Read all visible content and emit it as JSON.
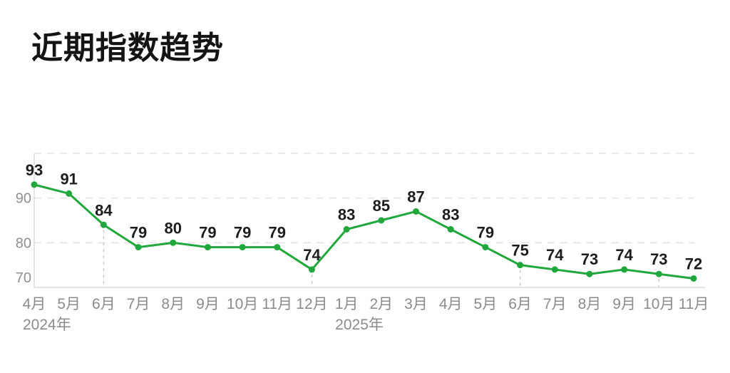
{
  "title": "近期指数趋势",
  "chart_data": {
    "type": "line",
    "title": "近期指数趋势",
    "x": [
      "4月",
      "5月",
      "6月",
      "7月",
      "8月",
      "9月",
      "10月",
      "11月",
      "12月",
      "1月",
      "2月",
      "3月",
      "4月",
      "5月",
      "6月",
      "7月",
      "8月",
      "9月",
      "10月",
      "11月"
    ],
    "values": [
      93,
      91,
      84,
      79,
      80,
      79,
      79,
      79,
      74,
      83,
      85,
      87,
      83,
      79,
      75,
      74,
      73,
      74,
      73,
      72
    ],
    "year_labels": [
      {
        "text": "2024年",
        "index": 0
      },
      {
        "text": "2025年",
        "index": 9
      }
    ],
    "yticks": [
      90,
      80,
      70
    ],
    "ylim": [
      70,
      100
    ],
    "grid_values": [
      100,
      90,
      80
    ],
    "drop_line_indices": [
      2,
      8,
      14,
      18
    ],
    "legend": "none",
    "grid": "horizontal-dashed",
    "colors": {
      "line": "#21a83d",
      "marker": "#21a83d",
      "label": "#1d1d1f",
      "tick": "#8f8f8f",
      "month": "#8b8b8b",
      "grid": "#e3e3e3",
      "axis": "#dcdcdc",
      "drop": "#c9c9c9",
      "title": "#141414",
      "background": "#ffffff"
    }
  }
}
